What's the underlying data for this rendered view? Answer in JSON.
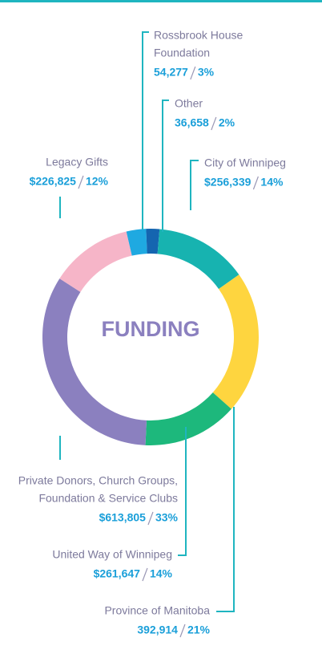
{
  "chart_data": {
    "type": "donut",
    "title": "FUNDING",
    "categories": [
      [
        "Rossbrook House",
        "Foundation"
      ],
      [
        "Other"
      ],
      [
        "City of Winnipeg"
      ],
      [
        "Province of Manitoba"
      ],
      [
        "United Way of Winnipeg"
      ],
      [
        "Private Donors, Church Groups,",
        "Foundation & Service Clubs"
      ],
      [
        "Legacy Gifts"
      ]
    ],
    "values": [
      54277,
      36658,
      256339,
      392914,
      261647,
      613805,
      226825
    ],
    "value_labels": [
      "54,277",
      "36,658",
      "$256,339",
      "392,914",
      "$261,647",
      "$613,805",
      "$226,825"
    ],
    "percent_labels": [
      "3%",
      "2%",
      "14%",
      "21%",
      "14%",
      "33%",
      "12%"
    ],
    "colors": [
      "#1fa9e1",
      "#1565b0",
      "#17b3b0",
      "#fed53f",
      "#1db87c",
      "#8b80bf",
      "#f6b5c8"
    ]
  }
}
